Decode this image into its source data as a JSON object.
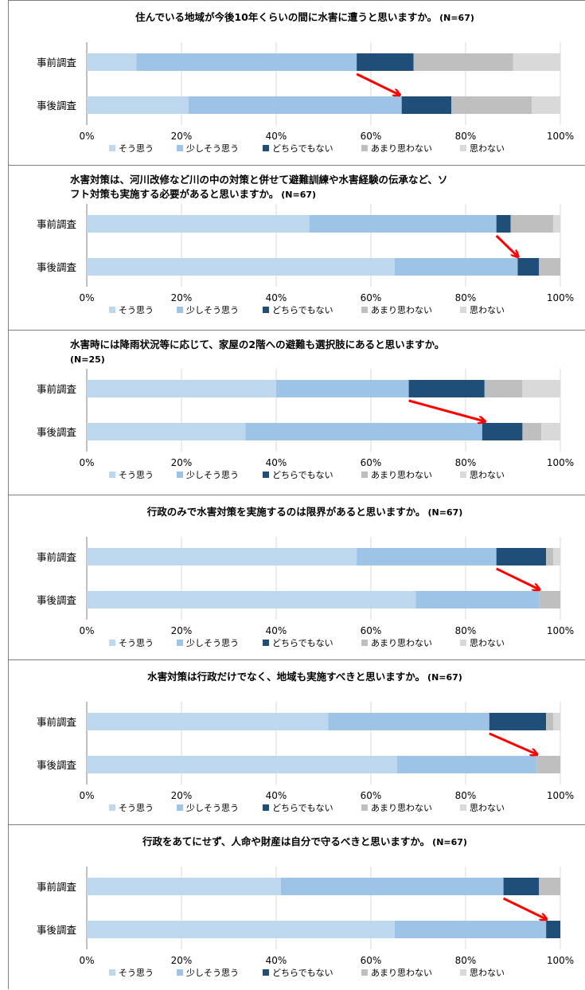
{
  "legend": [
    "そう思う",
    "少しそう思う",
    "どちらでもない",
    "あまり思わない",
    "思わない"
  ],
  "colors": [
    "#bdd7ee",
    "#9dc3e6",
    "#1f4e79",
    "#bfbfbf",
    "#d9d9d9"
  ],
  "arrow_color": "#ff0000",
  "axis_ticks": [
    "0%",
    "20%",
    "40%",
    "60%",
    "80%",
    "100%"
  ],
  "chart_data": [
    {
      "type": "bar",
      "orientation": "horizontal",
      "stacked": true,
      "title_lines": [
        "住んでいる地域が今後10年くらいの間に水害に遭うと思いますか。"
      ],
      "n_label": "(N=67)",
      "categories": [
        "事前調査",
        "事後調査"
      ],
      "series": [
        {
          "name": "そう思う",
          "values": [
            10.5,
            21.5
          ]
        },
        {
          "name": "少しそう思う",
          "values": [
            46.5,
            45.0
          ]
        },
        {
          "name": "どちらでもない",
          "values": [
            12.0,
            10.5
          ]
        },
        {
          "name": "あまり思わない",
          "values": [
            21.0,
            17.0
          ]
        },
        {
          "name": "思わない",
          "values": [
            10.0,
            6.0
          ]
        }
      ],
      "xlim": [
        0,
        100
      ],
      "arrow": {
        "from": [
          57,
          0.5
        ],
        "to": [
          66,
          0.95
        ]
      }
    },
    {
      "type": "bar",
      "orientation": "horizontal",
      "stacked": true,
      "title_lines": [
        "水害対策は、河川改修など川の中の対策と併せて避難訓練や水害経験の伝承など、ソ",
        "フト対策も実施する必要があると思いますか。"
      ],
      "n_label": "(N=67)",
      "categories": [
        "事前調査",
        "事後調査"
      ],
      "series": [
        {
          "name": "そう思う",
          "values": [
            47.0,
            65.0
          ]
        },
        {
          "name": "少しそう思う",
          "values": [
            39.5,
            26.0
          ]
        },
        {
          "name": "どちらでもない",
          "values": [
            3.0,
            4.5
          ]
        },
        {
          "name": "あまり思わない",
          "values": [
            9.0,
            4.5
          ]
        },
        {
          "name": "思わない",
          "values": [
            1.5,
            0.0
          ]
        }
      ],
      "xlim": [
        0,
        100
      ],
      "arrow": {
        "from": [
          86.5,
          0.5
        ],
        "to": [
          91,
          0.95
        ]
      }
    },
    {
      "type": "bar",
      "orientation": "horizontal",
      "stacked": true,
      "title_lines": [
        "水害時には降雨状況等に応じて、家屋の2階への避難も選択肢にあると思いますか。"
      ],
      "n_label": "(N=25)",
      "categories": [
        "事前調査",
        "事後調査"
      ],
      "series": [
        {
          "name": "そう思う",
          "values": [
            40.0,
            33.5
          ]
        },
        {
          "name": "少しそう思う",
          "values": [
            28.0,
            50.0
          ]
        },
        {
          "name": "どちらでもない",
          "values": [
            16.0,
            8.5
          ]
        },
        {
          "name": "あまり思わない",
          "values": [
            8.0,
            4.0
          ]
        },
        {
          "name": "思わない",
          "values": [
            8.0,
            4.0
          ]
        }
      ],
      "xlim": [
        0,
        100
      ],
      "arrow": {
        "from": [
          68,
          0.5
        ],
        "to": [
          84,
          0.95
        ]
      }
    },
    {
      "type": "bar",
      "orientation": "horizontal",
      "stacked": true,
      "title_lines": [
        "行政のみで水害対策を実施するのは限界があると思いますか。"
      ],
      "n_label": "(N=67)",
      "categories": [
        "事前調査",
        "事後調査"
      ],
      "series": [
        {
          "name": "そう思う",
          "values": [
            57.0,
            69.5
          ]
        },
        {
          "name": "少しそう思う",
          "values": [
            29.5,
            26.0
          ]
        },
        {
          "name": "どちらでもない",
          "values": [
            10.5,
            0.0
          ]
        },
        {
          "name": "あまり思わない",
          "values": [
            1.5,
            4.5
          ]
        },
        {
          "name": "思わない",
          "values": [
            1.5,
            0.0
          ]
        }
      ],
      "xlim": [
        0,
        100
      ],
      "arrow": {
        "from": [
          86.5,
          0.5
        ],
        "to": [
          95.5,
          0.95
        ]
      }
    },
    {
      "type": "bar",
      "orientation": "horizontal",
      "stacked": true,
      "title_lines": [
        "水害対策は行政だけでなく、地域も実施すべきと思いますか。"
      ],
      "n_label": "(N=67)",
      "categories": [
        "事前調査",
        "事後調査"
      ],
      "series": [
        {
          "name": "そう思う",
          "values": [
            51.0,
            65.5
          ]
        },
        {
          "name": "少しそう思う",
          "values": [
            34.0,
            29.5
          ]
        },
        {
          "name": "どちらでもない",
          "values": [
            12.0,
            0.0
          ]
        },
        {
          "name": "あまり思わない",
          "values": [
            1.5,
            5.0
          ]
        },
        {
          "name": "思わない",
          "values": [
            1.5,
            0.0
          ]
        }
      ],
      "xlim": [
        0,
        100
      ],
      "arrow": {
        "from": [
          85,
          0.5
        ],
        "to": [
          95,
          0.95
        ]
      }
    },
    {
      "type": "bar",
      "orientation": "horizontal",
      "stacked": true,
      "title_lines": [
        "行政をあてにせず、人命や財産は自分で守るべきと思いますか。"
      ],
      "n_label": "(N=67)",
      "categories": [
        "事前調査",
        "事後調査"
      ],
      "series": [
        {
          "name": "そう思う",
          "values": [
            41.0,
            65.0
          ]
        },
        {
          "name": "少しそう思う",
          "values": [
            47.0,
            32.0
          ]
        },
        {
          "name": "どちらでもない",
          "values": [
            7.5,
            3.0
          ]
        },
        {
          "name": "あまり思わない",
          "values": [
            4.5,
            0.0
          ]
        },
        {
          "name": "思わない",
          "values": [
            0.0,
            0.0
          ]
        }
      ],
      "xlim": [
        0,
        100
      ],
      "arrow": {
        "from": [
          88,
          0.5
        ],
        "to": [
          97,
          0.95
        ]
      }
    }
  ]
}
